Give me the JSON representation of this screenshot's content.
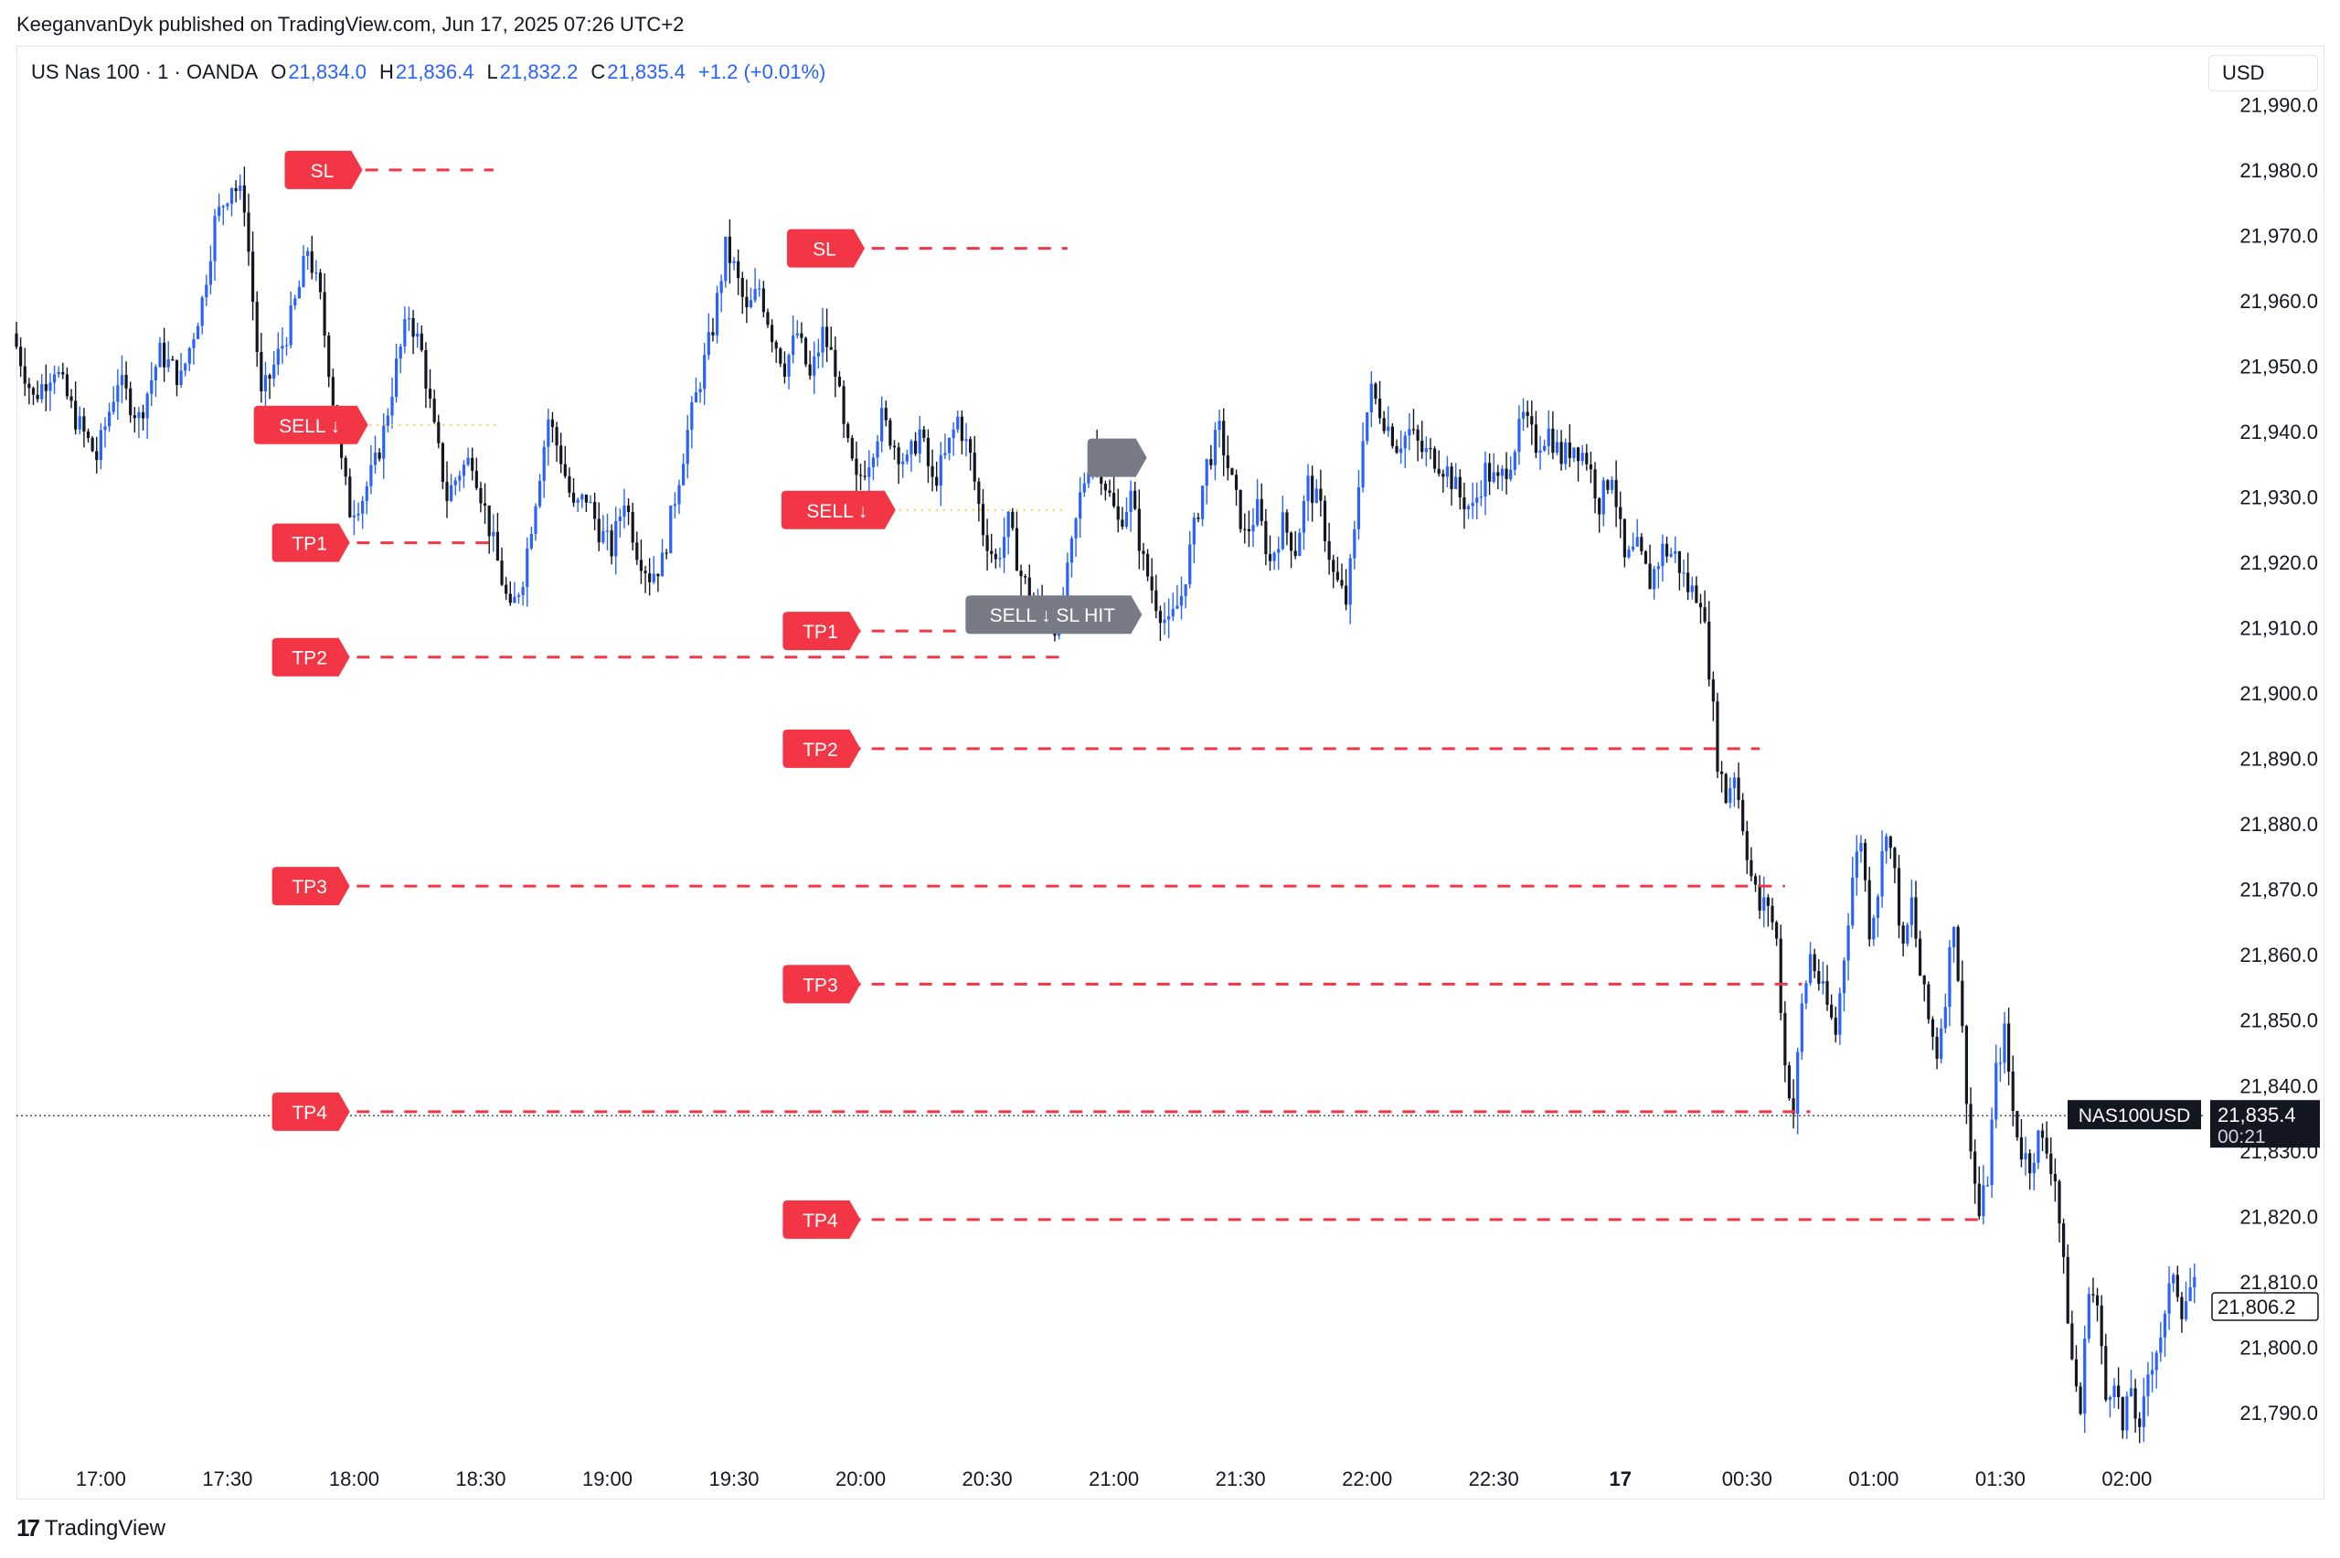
{
  "header": {
    "published_line": "KeeganvanDyk published on TradingView.com, Jun 17, 2025 07:26 UTC+2"
  },
  "legend": {
    "symbol": "US Nas 100 · 1 · OANDA",
    "open_label": "O",
    "open": "21,834.0",
    "high_label": "H",
    "high": "21,836.4",
    "low_label": "L",
    "low": "21,832.2",
    "close_label": "C",
    "close": "21,835.4",
    "change": "+1.2 (+0.01%)"
  },
  "currency": "USD",
  "footer": {
    "brand": "TradingView",
    "logo_glyph": "17"
  },
  "colors": {
    "up": "#2962ff",
    "down": "#131722",
    "signal": "#f23645",
    "hit": "#787b86",
    "entry": "#f7c948",
    "axis_text": "#131722"
  },
  "chart_data": {
    "type": "candlestick",
    "title": "US Nas 100 · 1 · OANDA",
    "ylim": [
      21783,
      21992
    ],
    "y_ticks": [
      21790,
      21800,
      21810,
      21820,
      21830,
      21840,
      21850,
      21860,
      21870,
      21880,
      21890,
      21900,
      21910,
      21920,
      21930,
      21940,
      21950,
      21960,
      21970,
      21980,
      21990
    ],
    "y_tick_labels": [
      "21,790.0",
      "21,800.0",
      "21,810.0",
      "21,820.0",
      "21,830.0",
      "21,840.0",
      "21,850.0",
      "21,860.0",
      "21,870.0",
      "21,880.0",
      "21,890.0",
      "21,900.0",
      "21,910.0",
      "21,920.0",
      "21,930.0",
      "21,940.0",
      "21,950.0",
      "21,960.0",
      "21,970.0",
      "21,980.0",
      "21,990.0"
    ],
    "x_labels": [
      "17:00",
      "17:30",
      "18:00",
      "18:30",
      "19:00",
      "19:30",
      "20:00",
      "20:30",
      "21:00",
      "21:30",
      "22:00",
      "22:30",
      "17",
      "00:30",
      "01:00",
      "01:30",
      "02:00"
    ],
    "x_label_minutes": [
      0,
      30,
      60,
      90,
      120,
      150,
      180,
      210,
      240,
      270,
      300,
      330,
      360,
      390,
      420,
      450,
      480
    ],
    "x_label_bold": [
      false,
      false,
      false,
      false,
      false,
      false,
      false,
      false,
      false,
      false,
      false,
      false,
      true,
      false,
      false,
      false,
      false
    ],
    "x_range_minutes": [
      -20,
      498
    ],
    "price_path": [
      [
        -20,
        21955
      ],
      [
        -15,
        21945
      ],
      [
        -10,
        21950
      ],
      [
        -5,
        21942
      ],
      [
        0,
        21936
      ],
      [
        5,
        21948
      ],
      [
        10,
        21942
      ],
      [
        15,
        21952
      ],
      [
        20,
        21948
      ],
      [
        25,
        21960
      ],
      [
        28,
        21972
      ],
      [
        32,
        21978
      ],
      [
        35,
        21975
      ],
      [
        37,
        21960
      ],
      [
        39,
        21945
      ],
      [
        42,
        21950
      ],
      [
        45,
        21955
      ],
      [
        48,
        21962
      ],
      [
        50,
        21968
      ],
      [
        53,
        21960
      ],
      [
        56,
        21945
      ],
      [
        58,
        21935
      ],
      [
        60,
        21928
      ],
      [
        63,
        21930
      ],
      [
        66,
        21935
      ],
      [
        68,
        21940
      ],
      [
        71,
        21950
      ],
      [
        74,
        21958
      ],
      [
        77,
        21952
      ],
      [
        80,
        21940
      ],
      [
        83,
        21930
      ],
      [
        86,
        21934
      ],
      [
        89,
        21936
      ],
      [
        92,
        21928
      ],
      [
        95,
        21920
      ],
      [
        98,
        21912
      ],
      [
        101,
        21918
      ],
      [
        104,
        21930
      ],
      [
        107,
        21942
      ],
      [
        110,
        21936
      ],
      [
        113,
        21928
      ],
      [
        116,
        21930
      ],
      [
        119,
        21925
      ],
      [
        122,
        21922
      ],
      [
        125,
        21930
      ],
      [
        128,
        21922
      ],
      [
        131,
        21918
      ],
      [
        134,
        21920
      ],
      [
        137,
        21930
      ],
      [
        140,
        21940
      ],
      [
        143,
        21948
      ],
      [
        146,
        21956
      ],
      [
        149,
        21968
      ],
      [
        151,
        21965
      ],
      [
        154,
        21958
      ],
      [
        157,
        21962
      ],
      [
        160,
        21955
      ],
      [
        163,
        21950
      ],
      [
        166,
        21955
      ],
      [
        169,
        21948
      ],
      [
        172,
        21955
      ],
      [
        175,
        21950
      ],
      [
        177,
        21940
      ],
      [
        180,
        21932
      ],
      [
        183,
        21936
      ],
      [
        186,
        21942
      ],
      [
        189,
        21938
      ],
      [
        192,
        21935
      ],
      [
        195,
        21940
      ],
      [
        198,
        21932
      ],
      [
        201,
        21936
      ],
      [
        204,
        21942
      ],
      [
        207,
        21936
      ],
      [
        210,
        21925
      ],
      [
        213,
        21920
      ],
      [
        216,
        21926
      ],
      [
        219,
        21918
      ],
      [
        222,
        21914
      ],
      [
        225,
        21912
      ],
      [
        228,
        21910
      ],
      [
        230,
        21918
      ],
      [
        233,
        21930
      ],
      [
        236,
        21938
      ],
      [
        239,
        21932
      ],
      [
        242,
        21926
      ],
      [
        245,
        21930
      ],
      [
        248,
        21920
      ],
      [
        251,
        21914
      ],
      [
        254,
        21910
      ],
      [
        257,
        21915
      ],
      [
        260,
        21925
      ],
      [
        263,
        21935
      ],
      [
        266,
        21940
      ],
      [
        269,
        21932
      ],
      [
        272,
        21924
      ],
      [
        275,
        21928
      ],
      [
        278,
        21920
      ],
      [
        281,
        21926
      ],
      [
        284,
        21922
      ],
      [
        287,
        21932
      ],
      [
        290,
        21928
      ],
      [
        293,
        21918
      ],
      [
        296,
        21914
      ],
      [
        298,
        21924
      ],
      [
        300,
        21940
      ],
      [
        302,
        21946
      ],
      [
        305,
        21942
      ],
      [
        308,
        21938
      ],
      [
        311,
        21940
      ],
      [
        314,
        21937
      ],
      [
        317,
        21936
      ],
      [
        320,
        21934
      ],
      [
        323,
        21930
      ],
      [
        326,
        21928
      ],
      [
        329,
        21934
      ],
      [
        332,
        21932
      ],
      [
        335,
        21936
      ],
      [
        338,
        21942
      ],
      [
        341,
        21938
      ],
      [
        344,
        21940
      ],
      [
        347,
        21936
      ],
      [
        350,
        21938
      ],
      [
        353,
        21936
      ],
      [
        356,
        21929
      ],
      [
        359,
        21934
      ],
      [
        362,
        21920
      ],
      [
        365,
        21922
      ],
      [
        368,
        21917
      ],
      [
        371,
        21922
      ],
      [
        374,
        21921
      ],
      [
        377,
        21916
      ],
      [
        380,
        21915
      ],
      [
        382,
        21904
      ],
      [
        384,
        21890
      ],
      [
        386,
        21884
      ],
      [
        388,
        21888
      ],
      [
        390,
        21880
      ],
      [
        392,
        21872
      ],
      [
        394,
        21867
      ],
      [
        396,
        21868
      ],
      [
        398,
        21862
      ],
      [
        400,
        21843
      ],
      [
        402,
        21836
      ],
      [
        404,
        21852
      ],
      [
        406,
        21860
      ],
      [
        408,
        21856
      ],
      [
        410,
        21852
      ],
      [
        412,
        21848
      ],
      [
        414,
        21860
      ],
      [
        416,
        21872
      ],
      [
        418,
        21878
      ],
      [
        420,
        21864
      ],
      [
        422,
        21870
      ],
      [
        424,
        21880
      ],
      [
        426,
        21872
      ],
      [
        428,
        21860
      ],
      [
        430,
        21868
      ],
      [
        432,
        21857
      ],
      [
        434,
        21850
      ],
      [
        436,
        21845
      ],
      [
        438,
        21854
      ],
      [
        440,
        21866
      ],
      [
        442,
        21848
      ],
      [
        444,
        21830
      ],
      [
        446,
        21820
      ],
      [
        448,
        21826
      ],
      [
        450,
        21842
      ],
      [
        452,
        21848
      ],
      [
        454,
        21836
      ],
      [
        456,
        21830
      ],
      [
        458,
        21828
      ],
      [
        460,
        21832
      ],
      [
        462,
        21830
      ],
      [
        464,
        21826
      ],
      [
        466,
        21812
      ],
      [
        468,
        21798
      ],
      [
        470,
        21790
      ],
      [
        472,
        21810
      ],
      [
        474,
        21806
      ],
      [
        476,
        21792
      ],
      [
        478,
        21796
      ],
      [
        480,
        21787
      ],
      [
        482,
        21794
      ],
      [
        484,
        21786
      ],
      [
        486,
        21796
      ],
      [
        488,
        21800
      ],
      [
        490,
        21804
      ],
      [
        492,
        21812
      ],
      [
        494,
        21806
      ],
      [
        496,
        21809
      ]
    ],
    "reference_lines": [
      {
        "price": 21835.4,
        "style": "dotted",
        "label": "NAS100USD"
      }
    ],
    "signals": [
      {
        "label": "SL",
        "price": 21980.0,
        "label_minute": 52,
        "line_from": 57,
        "line_to": 93
      },
      {
        "label": "SELL ↓",
        "price": 21941.0,
        "label_minute": 49,
        "line_from": 55,
        "line_to": 94,
        "entry": true
      },
      {
        "label": "TP1",
        "price": 21923.0,
        "label_minute": 49,
        "line_from": 55,
        "line_to": 94
      },
      {
        "label": "TP2",
        "price": 21905.5,
        "label_minute": 49,
        "line_from": 55,
        "line_to": 227
      },
      {
        "label": "TP3",
        "price": 21870.5,
        "label_minute": 49,
        "line_from": 55,
        "line_to": 399
      },
      {
        "label": "TP4",
        "price": 21836.0,
        "label_minute": 49,
        "line_from": 55,
        "line_to": 405
      },
      {
        "label": "SL",
        "price": 21968.0,
        "label_minute": 171,
        "line_from": 177,
        "line_to": 229
      },
      {
        "label": "SELL ↓",
        "price": 21928.0,
        "label_minute": 174,
        "line_from": 177,
        "line_to": 229,
        "entry": true
      },
      {
        "label": "TP1",
        "price": 21909.5,
        "label_minute": 170,
        "line_from": 177,
        "line_to": 212
      },
      {
        "label": "TP2",
        "price": 21891.5,
        "label_minute": 170,
        "line_from": 177,
        "line_to": 393
      },
      {
        "label": "TP3",
        "price": 21855.5,
        "label_minute": 170,
        "line_from": 177,
        "line_to": 403
      },
      {
        "label": "TP4",
        "price": 21819.5,
        "label_minute": 170,
        "line_from": 177,
        "line_to": 446
      }
    ],
    "hit_labels": [
      {
        "label": "SELL ↓ SL HIT",
        "price": 21912.0,
        "minute": 225
      },
      {
        "label": "",
        "price": 21936.0,
        "minute": 240
      }
    ],
    "last_price": {
      "symbol": "NAS100USD",
      "price": "21,835.4",
      "countdown": "00:21"
    },
    "marker_price": {
      "price": "21,806.2",
      "value": 21806.2
    }
  }
}
